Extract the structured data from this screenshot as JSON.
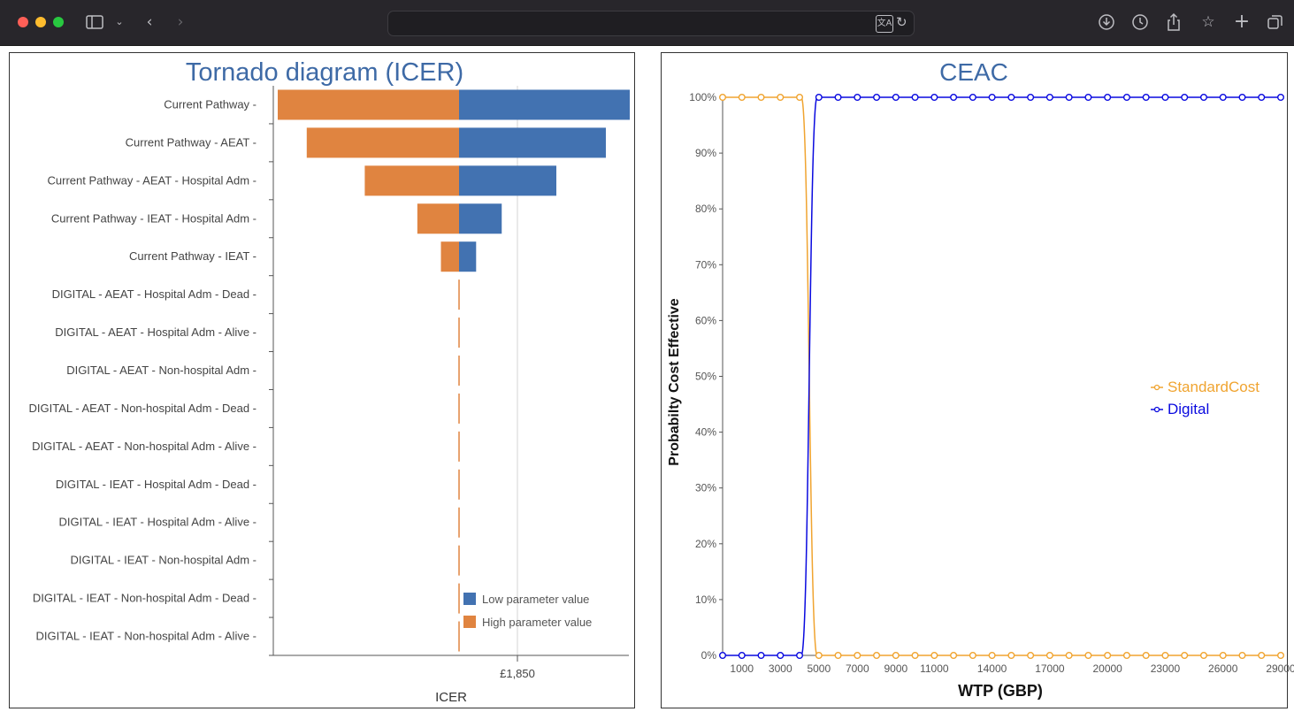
{
  "browser": {
    "url": "",
    "traffic_lights": [
      "#ff5f57",
      "#febc2e",
      "#28c840"
    ],
    "icons": [
      "sidebar-icon",
      "chevron-down-icon",
      "back-icon",
      "forward-icon",
      "translate-icon",
      "reload-icon",
      "download-icon",
      "history-icon",
      "share-icon",
      "bookmark-star-icon",
      "new-tab-icon",
      "tabs-overview-icon"
    ]
  },
  "tornado": {
    "title": "Tornado diagram (ICER)",
    "x_tick": "£1,850",
    "xlabel": "ICER",
    "legend": [
      {
        "label": "Low parameter value",
        "color": "#4272b1"
      },
      {
        "label": "High parameter value",
        "color": "#e08440"
      }
    ]
  },
  "ceac": {
    "title": "CEAC",
    "xlabel": "WTP (GBP)",
    "ylabel": "Probabilty Cost Effective",
    "legend": [
      {
        "label": "StandardCost",
        "color": "#f0a430"
      },
      {
        "label": "Digital",
        "color": "#0a0adf"
      }
    ]
  },
  "chart_data": [
    {
      "type": "bar",
      "title": "Tornado diagram (ICER)",
      "xlabel": "ICER",
      "ylabel": "",
      "x_ticks": [
        "£1,850"
      ],
      "baseline_note": "bars extend left (high parameter value) and right (low parameter value) from the base-case ICER",
      "categories": [
        "Current Pathway -",
        "Current Pathway - AEAT -",
        "Current Pathway - AEAT - Hospital Adm -",
        "Current Pathway - IEAT - Hospital Adm -",
        "Current Pathway - IEAT -",
        "DIGITAL - AEAT - Hospital Adm - Dead -",
        "DIGITAL - AEAT - Hospital Adm - Alive -",
        "DIGITAL - AEAT - Non-hospital Adm -",
        "DIGITAL - AEAT - Non-hospital Adm - Dead -",
        "DIGITAL - AEAT - Non-hospital Adm - Alive -",
        "DIGITAL - IEAT - Hospital Adm - Dead -",
        "DIGITAL - IEAT - Hospital Adm - Alive -",
        "DIGITAL - IEAT - Non-hospital Adm -",
        "DIGITAL - IEAT - Non-hospital Adm - Dead -",
        "DIGITAL - IEAT - Non-hospital Adm - Alive -"
      ],
      "series": [
        {
          "name": "Low parameter value",
          "color": "#4272b1",
          "deviation_relative": [
            1.0,
            0.86,
            0.57,
            0.25,
            0.1,
            0,
            0,
            0,
            0,
            0,
            0,
            0,
            0,
            0,
            0
          ]
        },
        {
          "name": "High parameter value",
          "color": "#e08440",
          "deviation_relative": [
            -1.0,
            -0.84,
            -0.52,
            -0.23,
            -0.1,
            0,
            0,
            0,
            0,
            0,
            0,
            0,
            0,
            0,
            0
          ]
        }
      ],
      "legend_position": "bottom-right"
    },
    {
      "type": "line",
      "title": "CEAC",
      "xlabel": "WTP (GBP)",
      "ylabel": "Probabilty Cost Effective",
      "x_ticks": [
        1000,
        3000,
        5000,
        7000,
        9000,
        11000,
        14000,
        17000,
        20000,
        23000,
        26000,
        29000
      ],
      "y_ticks": [
        "0%",
        "10%",
        "20%",
        "30%",
        "40%",
        "50%",
        "60%",
        "70%",
        "80%",
        "90%",
        "100%"
      ],
      "xlim": [
        0,
        29000
      ],
      "ylim": [
        0,
        1
      ],
      "x": [
        0,
        1000,
        2000,
        3000,
        4000,
        5000,
        6000,
        7000,
        8000,
        9000,
        10000,
        11000,
        12000,
        13000,
        14000,
        15000,
        16000,
        17000,
        18000,
        19000,
        20000,
        21000,
        22000,
        23000,
        24000,
        25000,
        26000,
        27000,
        28000,
        29000
      ],
      "series": [
        {
          "name": "StandardCost",
          "color": "#f0a430",
          "values": [
            1,
            1,
            1,
            1,
            1,
            0,
            0,
            0,
            0,
            0,
            0,
            0,
            0,
            0,
            0,
            0,
            0,
            0,
            0,
            0,
            0,
            0,
            0,
            0,
            0,
            0,
            0,
            0,
            0,
            0
          ]
        },
        {
          "name": "Digital",
          "color": "#0a0adf",
          "values": [
            0,
            0,
            0,
            0,
            0,
            1,
            1,
            1,
            1,
            1,
            1,
            1,
            1,
            1,
            1,
            1,
            1,
            1,
            1,
            1,
            1,
            1,
            1,
            1,
            1,
            1,
            1,
            1,
            1,
            1
          ]
        }
      ],
      "legend_position": "right",
      "grid": false
    }
  ]
}
